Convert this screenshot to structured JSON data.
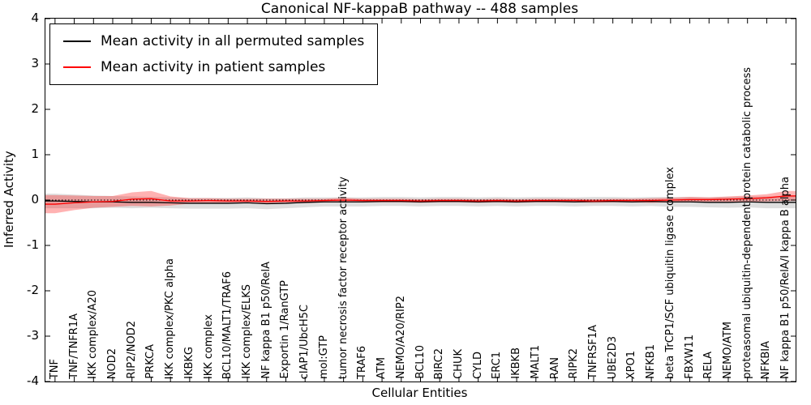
{
  "chart_data": {
    "type": "line",
    "title": "Canonical NF-kappaB pathway -- 488 samples",
    "xlabel": "Cellular Entities",
    "ylabel": "Inferred Activity",
    "ylim": [
      -4,
      4
    ],
    "yticks": [
      -4,
      -3,
      -2,
      -1,
      0,
      1,
      2,
      3,
      4
    ],
    "ytick_labels": [
      "-4",
      "-3",
      "-2",
      "-1",
      "0",
      "1",
      "2",
      "3",
      "4"
    ],
    "grid": false,
    "legend_position": "upper left",
    "reference_line": {
      "y": 0,
      "style": "dotted",
      "color": "#000000"
    },
    "categories": [
      "TNF",
      "TNF/TNFR1A",
      "IKK complex/A20",
      "NOD2",
      "RIP2/NOD2",
      "PRKCA",
      "IKK complex/PKC alpha",
      "IKBKG",
      "IKK complex",
      "BCL10/MALT1/TRAF6",
      "IKK complex/ELKS",
      "NF kappa B1 p50/RelA",
      "Exportin 1/RanGTP",
      "cIAP1/UbcH5C",
      "mol:GTP",
      "tumor necrosis factor receptor activity",
      "TRAF6",
      "ATM",
      "NEMO/A20/RIP2",
      "BCL10",
      "BIRC2",
      "CHUK",
      "CYLD",
      "ERC1",
      "IKBKB",
      "MALT1",
      "RAN",
      "RIPK2",
      "TNFRSF1A",
      "UBE2D3",
      "XPO1",
      "NFKB1",
      "beta TrCP1/SCF ubiquitin ligase complex",
      "FBXW11",
      "RELA",
      "NEMO/ATM",
      "proteasomal ubiquitin-dependent protein catabolic process",
      "NFKBIA",
      "NF kappa B1 p50/RelA/I kappa B alpha"
    ],
    "series": [
      {
        "name": "Mean activity in all permuted samples",
        "color": "#000000",
        "band_color": "rgba(0,0,0,0.13)",
        "values": [
          -0.02,
          -0.03,
          -0.04,
          -0.04,
          -0.05,
          -0.05,
          -0.06,
          -0.07,
          -0.07,
          -0.07,
          -0.06,
          -0.08,
          -0.07,
          -0.05,
          -0.04,
          -0.04,
          -0.04,
          -0.03,
          -0.03,
          -0.04,
          -0.03,
          -0.03,
          -0.04,
          -0.03,
          -0.04,
          -0.03,
          -0.03,
          -0.04,
          -0.03,
          -0.03,
          -0.04,
          -0.03,
          -0.04,
          -0.04,
          -0.05,
          -0.05,
          -0.04,
          -0.05,
          -0.05
        ],
        "band_halfwidth": [
          0.16,
          0.15,
          0.14,
          0.13,
          0.13,
          0.12,
          0.12,
          0.12,
          0.12,
          0.12,
          0.12,
          0.12,
          0.11,
          0.11,
          0.1,
          0.1,
          0.1,
          0.1,
          0.1,
          0.1,
          0.1,
          0.1,
          0.1,
          0.1,
          0.1,
          0.1,
          0.1,
          0.1,
          0.1,
          0.1,
          0.1,
          0.1,
          0.11,
          0.11,
          0.11,
          0.12,
          0.12,
          0.13,
          0.13
        ]
      },
      {
        "name": "Mean activity in patient samples",
        "color": "#ff0000",
        "band_color": "rgba(255,0,0,0.30)",
        "values": [
          -0.09,
          -0.06,
          -0.04,
          -0.03,
          0.02,
          0.03,
          -0.02,
          -0.02,
          -0.01,
          -0.02,
          -0.02,
          -0.03,
          -0.02,
          -0.02,
          -0.01,
          0.0,
          -0.01,
          -0.01,
          -0.01,
          -0.02,
          -0.01,
          -0.01,
          -0.02,
          -0.01,
          -0.02,
          -0.01,
          -0.01,
          -0.01,
          -0.02,
          -0.01,
          -0.01,
          -0.01,
          0.0,
          0.01,
          0.01,
          0.02,
          0.03,
          0.05,
          0.09
        ],
        "band_halfwidth": [
          0.2,
          0.16,
          0.13,
          0.12,
          0.15,
          0.17,
          0.1,
          0.06,
          0.05,
          0.05,
          0.05,
          0.06,
          0.05,
          0.05,
          0.04,
          0.05,
          0.04,
          0.04,
          0.04,
          0.04,
          0.04,
          0.04,
          0.04,
          0.04,
          0.04,
          0.04,
          0.04,
          0.04,
          0.04,
          0.04,
          0.04,
          0.05,
          0.05,
          0.06,
          0.05,
          0.06,
          0.07,
          0.08,
          0.11
        ]
      }
    ]
  }
}
